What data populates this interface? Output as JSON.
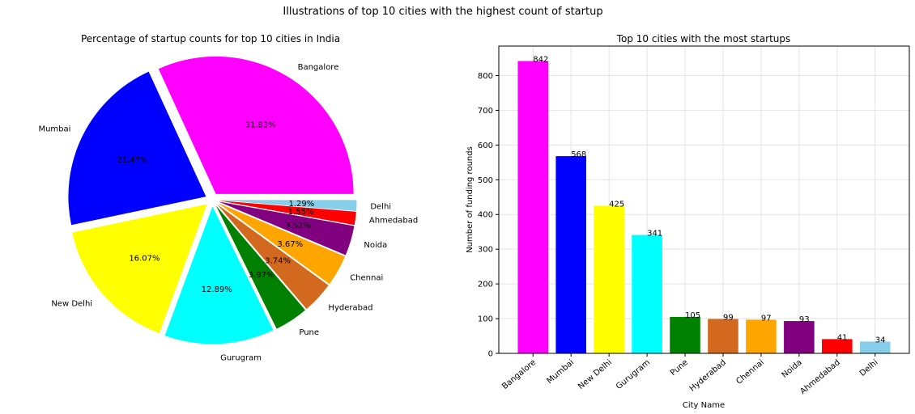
{
  "figure": {
    "suptitle": "Illustrations of top 10 cities with the highest count of startup"
  },
  "chart_data": [
    {
      "type": "pie",
      "title": "Percentage of startup counts for top 10 cities in India",
      "labels": [
        "Bangalore",
        "Mumbai",
        "New Delhi",
        "Gurugram",
        "Pune",
        "Hyderabad",
        "Chennai",
        "Noida",
        "Ahmedabad",
        "Delhi"
      ],
      "percent_labels": [
        "31.83%",
        "21.47%",
        "16.07%",
        "12.89%",
        "3.97%",
        "3.74%",
        "3.67%",
        "3.52%",
        "1.55%",
        "1.29%"
      ],
      "values": [
        842,
        568,
        425,
        341,
        105,
        99,
        97,
        93,
        41,
        34
      ],
      "colors": [
        "#ff00ff",
        "#0000ff",
        "#ffff00",
        "#00ffff",
        "#008000",
        "#d2691e",
        "#ffa500",
        "#800080",
        "#ff0000",
        "#87ceeb"
      ],
      "start_angle_deg": 0,
      "direction": "counterclockwise",
      "exploded": true
    },
    {
      "type": "bar",
      "title": "Top 10 cities with the most startups",
      "categories": [
        "Bangalore",
        "Mumbai",
        "New Delhi",
        "Gurugram",
        "Pune",
        "Hyderabad",
        "Chennai",
        "Noida",
        "Ahmedabad",
        "Delhi"
      ],
      "values": [
        842,
        568,
        425,
        341,
        105,
        99,
        97,
        93,
        41,
        34
      ],
      "data_labels": [
        "842",
        "568",
        "425",
        "341",
        "105",
        "99",
        "97",
        "93",
        "41",
        "34"
      ],
      "colors": [
        "#ff00ff",
        "#0000ff",
        "#ffff00",
        "#00ffff",
        "#008000",
        "#d2691e",
        "#ffa500",
        "#800080",
        "#ff0000",
        "#87ceeb"
      ],
      "xlabel": "City Name",
      "ylabel": "Number of funding rounds",
      "ylim": [
        0,
        885
      ],
      "yticks": [
        0,
        100,
        200,
        300,
        400,
        500,
        600,
        700,
        800
      ],
      "ytick_labels": [
        "0",
        "100",
        "200",
        "300",
        "400",
        "500",
        "600",
        "700",
        "800"
      ],
      "grid": true
    }
  ]
}
